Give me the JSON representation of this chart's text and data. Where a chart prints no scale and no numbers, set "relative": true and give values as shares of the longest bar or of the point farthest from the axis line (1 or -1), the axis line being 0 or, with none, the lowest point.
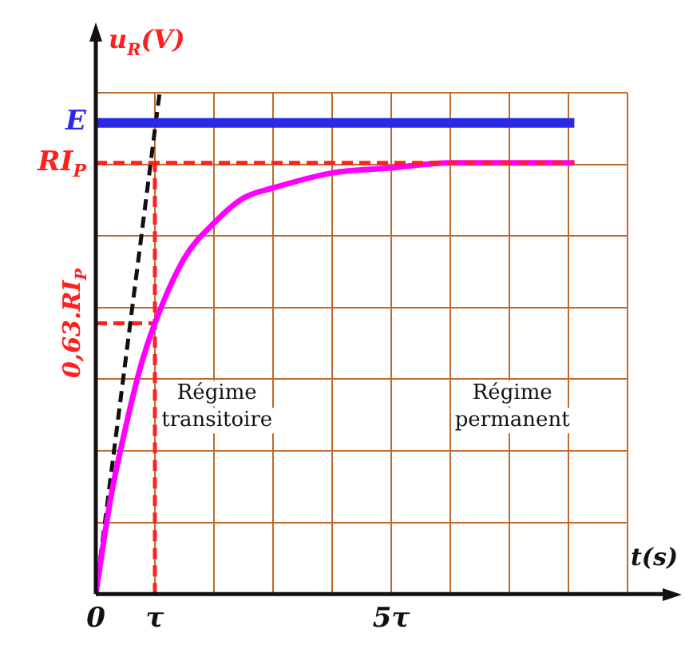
{
  "chart_data": {
    "type": "line",
    "xlabel": "t(s)",
    "ylabel": "u$_{R}$(V)",
    "relative": true,
    "xlim": [
      0,
      9
    ],
    "xticks": [
      0,
      {
        "value": 1,
        "label": "τ"
      },
      {
        "value": 2,
        "label": null
      },
      {
        "value": 3,
        "label": null
      },
      {
        "value": 4,
        "label": null
      },
      {
        "value": 5,
        "label": "5τ"
      },
      {
        "value": 6,
        "label": null
      },
      {
        "value": 7,
        "label": null
      },
      {
        "value": 8,
        "label": null
      },
      {
        "value": 9,
        "label": null
      }
    ],
    "tick_labels": "x",
    "grid": true,
    "legend": false,
    "marker": "none",
    "series": [
      {
        "color": "#ff00ff",
        "x": [
          0,
          0.25,
          0.5,
          0.75,
          1,
          1.5,
          2,
          2.5,
          3,
          4,
          5,
          6,
          7,
          8.1
        ],
        "values": [
          0,
          0.19,
          0.33,
          0.45,
          0.54,
          0.67,
          0.74,
          0.79,
          0.81,
          0.84,
          0.85,
          0.86,
          0.86,
          0.86
        ]
      },
      {
        "color": "#111111",
        "line_style": "dashed",
        "x": [
          0,
          1.08
        ],
        "values": [
          0,
          1
        ]
      },
      {
        "color": "#ff2020",
        "line_style": "dashed",
        "x": [
          1,
          1
        ],
        "values": [
          0,
          0.86
        ]
      },
      {
        "color": "#ff2020",
        "line_style": "dashed",
        "x": [
          0,
          1
        ],
        "values": [
          0.54,
          0.54
        ]
      }
    ],
    "ref_lines": [
      {
        "axis": "y",
        "value": 0.94,
        "label": "E",
        "color": "#2a2ae6",
        "line_style": "solid"
      },
      {
        "axis": "y",
        "value": 0.86,
        "label": "RI$_{P}$",
        "color": "#ff2020",
        "line_style": "dashed"
      }
    ],
    "annotations": [
      {
        "text": "0,63.RI$_{P}$",
        "x": 0,
        "y": 0.54
      },
      "Régime\ntransitoire",
      "Régime\npermanent"
    ]
  }
}
